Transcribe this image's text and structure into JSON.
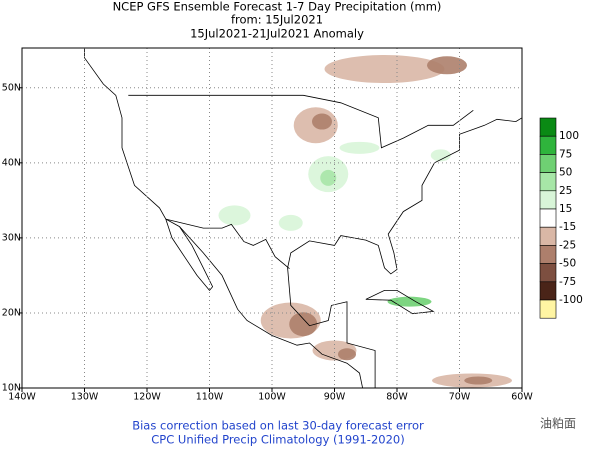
{
  "chart_data": {
    "type": "map",
    "title": [
      "NCEP GFS Ensemble Forecast 1-7 Day Precipitation (mm)",
      "from: 15Jul2021",
      "15Jul2021-21Jul2021 Anomaly"
    ],
    "xlim": [
      -140,
      -60
    ],
    "ylim": [
      10,
      55.3
    ],
    "xticks": [
      {
        "value": -140,
        "label": "140W"
      },
      {
        "value": -130,
        "label": "130W"
      },
      {
        "value": -120,
        "label": "120W"
      },
      {
        "value": -110,
        "label": "110W"
      },
      {
        "value": -100,
        "label": "100W"
      },
      {
        "value": -90,
        "label": "90W"
      },
      {
        "value": -80,
        "label": "80W"
      },
      {
        "value": -70,
        "label": "70W"
      },
      {
        "value": -60,
        "label": "60W"
      }
    ],
    "yticks": [
      {
        "value": 10,
        "label": "10N"
      },
      {
        "value": 20,
        "label": "20N"
      },
      {
        "value": 30,
        "label": "30N"
      },
      {
        "value": 40,
        "label": "40N"
      },
      {
        "value": 50,
        "label": "50N"
      }
    ],
    "grid": true,
    "colorbar": {
      "labels": [
        100,
        75,
        50,
        25,
        15,
        -15,
        -25,
        -50,
        -75,
        -100
      ],
      "colors": [
        "#0a8a14",
        "#2fb43c",
        "#6fd073",
        "#a7e6a7",
        "#d8f5d8",
        "#ffffff",
        "#d9b7a6",
        "#ad7f6c",
        "#7d4f40",
        "#4a2418",
        "#fff5a3"
      ]
    },
    "footer": [
      "Bias correction based on last 30-day forecast error",
      "CPC Unified Precip Climatology (1991-2020)"
    ],
    "watermark": "油粕面"
  }
}
